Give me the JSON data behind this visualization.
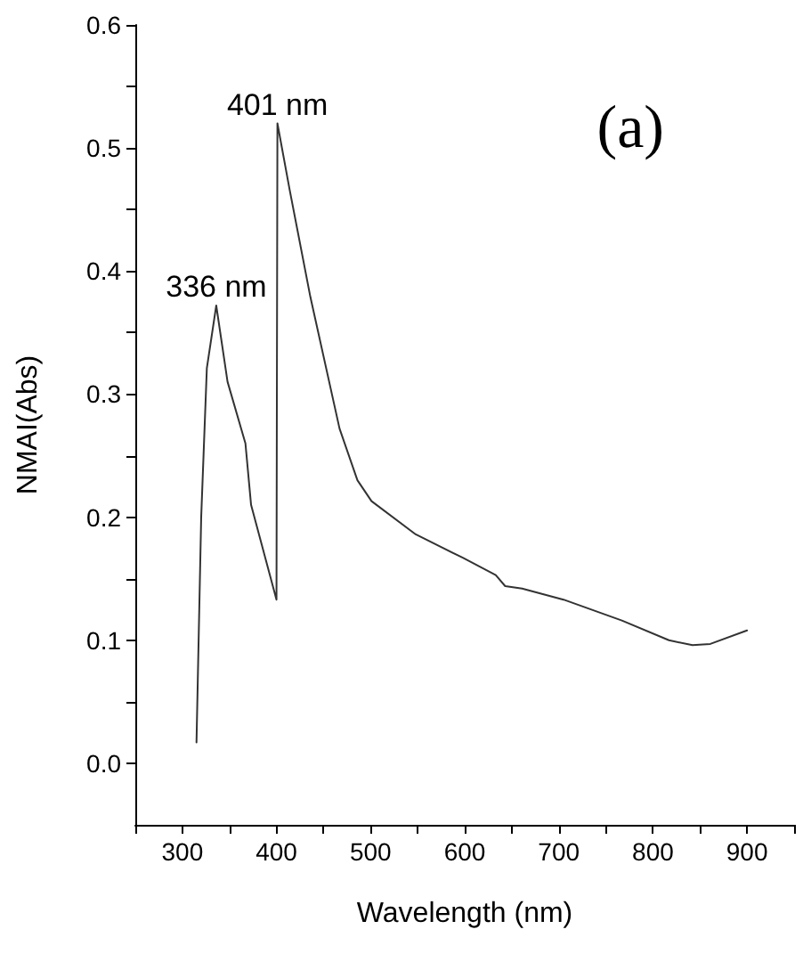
{
  "chart_data": {
    "type": "line",
    "xlabel": "Wavelength (nm)",
    "ylabel": "NMAI(Abs)",
    "annotations": [
      {
        "text": "336 nm",
        "x": 336,
        "y": 0.372
      },
      {
        "text": "401 nm",
        "x": 401,
        "y": 0.52
      },
      "(a)"
    ],
    "x": [
      315,
      320,
      326,
      336,
      348,
      367,
      373,
      400,
      401,
      414,
      436,
      467,
      486,
      501,
      548,
      598,
      633,
      643,
      661,
      705,
      767,
      817,
      842,
      861,
      900
    ],
    "series": [
      {
        "color": "#333333",
        "values": [
          0.017,
          0.2,
          0.321,
          0.372,
          0.31,
          0.26,
          0.21,
          0.133,
          0.52,
          0.466,
          0.379,
          0.272,
          0.23,
          0.213,
          0.186,
          0.167,
          0.153,
          0.144,
          0.142,
          0.133,
          0.116,
          0.1,
          0.096,
          0.097,
          0.108
        ]
      }
    ],
    "xlim": [
      250,
      950
    ],
    "xticks": [
      {
        "value": 250,
        "label": null
      },
      300,
      {
        "value": 350,
        "label": null
      },
      400,
      {
        "value": 450,
        "label": null
      },
      500,
      {
        "value": 550,
        "label": null
      },
      600,
      {
        "value": 650,
        "label": null
      },
      700,
      {
        "value": 750,
        "label": null
      },
      800,
      {
        "value": 850,
        "label": null
      },
      900,
      {
        "value": 950,
        "label": null
      }
    ],
    "ylim": [
      -0.05,
      0.6
    ],
    "yticks": [
      {
        "value": 0,
        "label": "0.0"
      },
      {
        "value": 0.05,
        "label": null
      },
      {
        "value": 0.1,
        "label": "0.1"
      },
      {
        "value": 0.15,
        "label": null
      },
      {
        "value": 0.2,
        "label": "0.2"
      },
      {
        "value": 0.25,
        "label": null
      },
      {
        "value": 0.3,
        "label": "0.3"
      },
      {
        "value": 0.35,
        "label": null
      },
      {
        "value": 0.4,
        "label": "0.4"
      },
      {
        "value": 0.45,
        "label": null
      },
      {
        "value": 0.5,
        "label": "0.5"
      },
      {
        "value": 0.55,
        "label": null
      },
      {
        "value": 0.6,
        "label": "0.6"
      }
    ],
    "grid": false,
    "marker": "none",
    "line_style": "solid"
  }
}
